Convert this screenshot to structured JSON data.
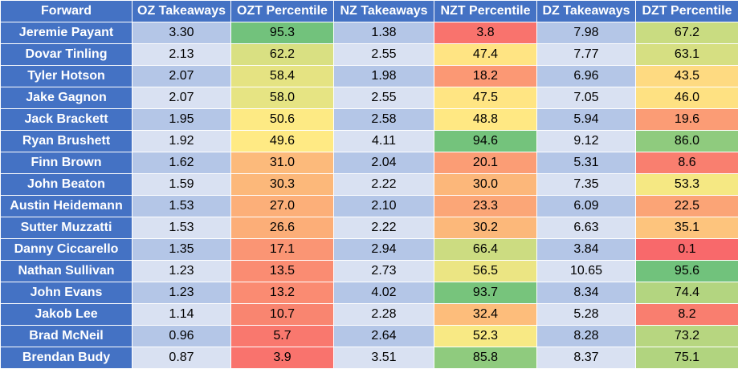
{
  "headers": [
    "Forward",
    "OZ Takeaways",
    "OZT Percentile",
    "NZ Takeaways",
    "NZT Percentile",
    "DZ Takeaways",
    "DZT Percentile"
  ],
  "rows": [
    [
      "Jeremie Payant",
      "3.30",
      "95.3",
      "1.38",
      "3.8",
      "7.98",
      "67.2"
    ],
    [
      "Dovar Tinling",
      "2.13",
      "62.2",
      "2.55",
      "47.4",
      "7.77",
      "63.1"
    ],
    [
      "Tyler Hotson",
      "2.07",
      "58.4",
      "1.98",
      "18.2",
      "6.96",
      "43.5"
    ],
    [
      "Jake Gagnon",
      "2.07",
      "58.0",
      "2.55",
      "47.5",
      "7.05",
      "46.0"
    ],
    [
      "Jack Brackett",
      "1.95",
      "50.6",
      "2.58",
      "48.8",
      "5.94",
      "19.6"
    ],
    [
      "Ryan Brushett",
      "1.92",
      "49.6",
      "4.11",
      "94.6",
      "9.12",
      "86.0"
    ],
    [
      "Finn Brown",
      "1.62",
      "31.0",
      "2.04",
      "20.1",
      "5.31",
      "8.6"
    ],
    [
      "John Beaton",
      "1.59",
      "30.3",
      "2.22",
      "30.0",
      "7.35",
      "53.3"
    ],
    [
      "Austin Heidemann",
      "1.53",
      "27.0",
      "2.10",
      "23.3",
      "6.09",
      "22.5"
    ],
    [
      "Sutter Muzzatti",
      "1.53",
      "26.6",
      "2.22",
      "30.2",
      "6.63",
      "35.1"
    ],
    [
      "Danny Ciccarello",
      "1.35",
      "17.1",
      "2.94",
      "66.4",
      "3.84",
      "0.1"
    ],
    [
      "Nathan Sullivan",
      "1.23",
      "13.5",
      "2.73",
      "56.5",
      "10.65",
      "95.6"
    ],
    [
      "John Evans",
      "1.23",
      "13.2",
      "4.02",
      "93.7",
      "8.34",
      "74.4"
    ],
    [
      "Jakob Lee",
      "1.14",
      "10.7",
      "2.28",
      "32.4",
      "5.28",
      "8.2"
    ],
    [
      "Brad McNeil",
      "0.96",
      "5.7",
      "2.64",
      "52.3",
      "8.28",
      "73.2"
    ],
    [
      "Brendan Budy",
      "0.87",
      "3.9",
      "3.51",
      "85.8",
      "8.37",
      "75.1"
    ]
  ],
  "colors": {
    "header_bg": "#4472c4",
    "row_odd": "#b4c6e7",
    "row_even": "#d9e1f2",
    "scale_low": "#f8696b",
    "scale_mid": "#ffeb84",
    "scale_high": "#63be7b"
  }
}
